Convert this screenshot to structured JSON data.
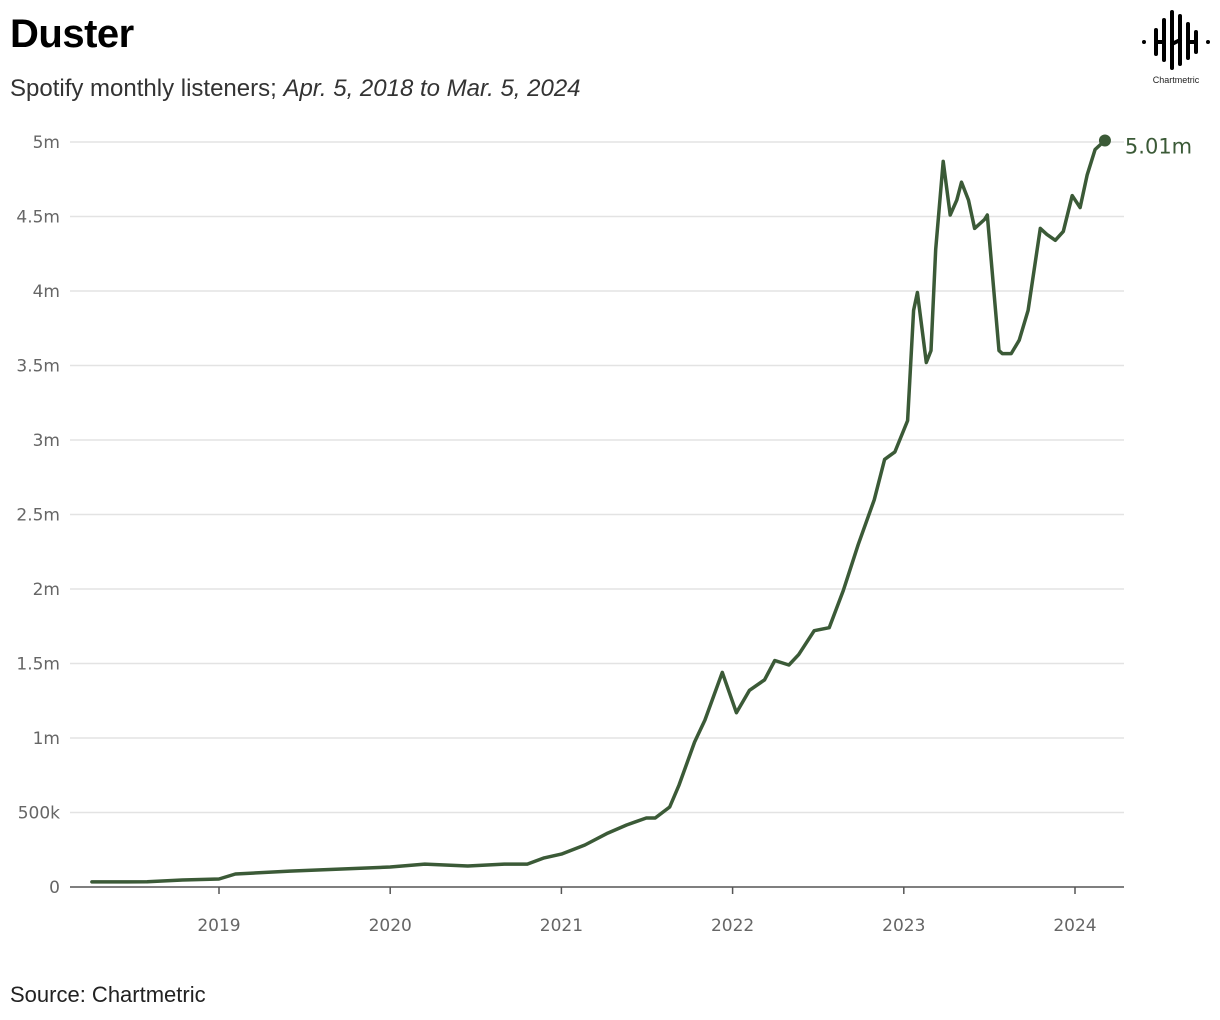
{
  "title": "Duster",
  "subtitle_plain": "Spotify monthly listeners;",
  "subtitle_italic": "Apr. 5, 2018 to Mar. 5, 2024",
  "source": "Source: Chartmetric",
  "logo_text": "Chartmetric",
  "chart_data": {
    "type": "line",
    "title": "Duster",
    "line_color": "#3b5a37",
    "grid": true,
    "ylim": [
      0,
      5000000
    ],
    "y_ticks": [
      {
        "v": 0,
        "label": "0"
      },
      {
        "v": 500000,
        "label": "500k"
      },
      {
        "v": 1000000,
        "label": "1m"
      },
      {
        "v": 1500000,
        "label": "1.5m"
      },
      {
        "v": 2000000,
        "label": "2m"
      },
      {
        "v": 2500000,
        "label": "2.5m"
      },
      {
        "v": 3000000,
        "label": "3m"
      },
      {
        "v": 3500000,
        "label": "3.5m"
      },
      {
        "v": 4000000,
        "label": "4m"
      },
      {
        "v": 4500000,
        "label": "4.5m"
      },
      {
        "v": 5000000,
        "label": "5m"
      }
    ],
    "x_ticks": [
      "2019",
      "2020",
      "2021",
      "2022",
      "2023",
      "2024"
    ],
    "xlim": [
      "2018-04-05",
      "2024-03-05"
    ],
    "end_label": "5.01m",
    "points": [
      [
        "2018-04-05",
        34000
      ],
      [
        "2018-08-01",
        35000
      ],
      [
        "2018-10-15",
        47000
      ],
      [
        "2019-01-01",
        54000
      ],
      [
        "2019-02-05",
        87000
      ],
      [
        "2019-06-01",
        107000
      ],
      [
        "2020-01-01",
        134000
      ],
      [
        "2020-03-15",
        154000
      ],
      [
        "2020-06-15",
        141000
      ],
      [
        "2020-09-01",
        154000
      ],
      [
        "2020-10-20",
        154000
      ],
      [
        "2020-11-25",
        195000
      ],
      [
        "2021-01-01",
        221000
      ],
      [
        "2021-02-20",
        282000
      ],
      [
        "2021-04-10",
        362000
      ],
      [
        "2021-05-20",
        416000
      ],
      [
        "2021-07-01",
        463000
      ],
      [
        "2021-07-20",
        463000
      ],
      [
        "2021-08-20",
        537000
      ],
      [
        "2021-09-09",
        685000
      ],
      [
        "2021-10-12",
        973000
      ],
      [
        "2021-11-03",
        1120000
      ],
      [
        "2021-12-10",
        1440000
      ],
      [
        "2022-01-09",
        1170000
      ],
      [
        "2022-02-06",
        1320000
      ],
      [
        "2022-03-10",
        1390000
      ],
      [
        "2022-04-01",
        1520000
      ],
      [
        "2022-05-01",
        1490000
      ],
      [
        "2022-05-22",
        1560000
      ],
      [
        "2022-06-24",
        1720000
      ],
      [
        "2022-07-26",
        1740000
      ],
      [
        "2022-08-25",
        1990000
      ],
      [
        "2022-09-26",
        2300000
      ],
      [
        "2022-10-30",
        2600000
      ],
      [
        "2022-11-21",
        2870000
      ],
      [
        "2022-12-13",
        2920000
      ],
      [
        "2023-01-09",
        3130000
      ],
      [
        "2023-01-22",
        3870000
      ],
      [
        "2023-01-30",
        3990000
      ],
      [
        "2023-02-18",
        3520000
      ],
      [
        "2023-02-28",
        3600000
      ],
      [
        "2023-03-10",
        4280000
      ],
      [
        "2023-03-26",
        4870000
      ],
      [
        "2023-04-10",
        4510000
      ],
      [
        "2023-04-24",
        4610000
      ],
      [
        "2023-05-04",
        4730000
      ],
      [
        "2023-05-19",
        4610000
      ],
      [
        "2023-06-01",
        4420000
      ],
      [
        "2023-06-22",
        4480000
      ],
      [
        "2023-06-28",
        4510000
      ],
      [
        "2023-07-23",
        3600000
      ],
      [
        "2023-07-30",
        3580000
      ],
      [
        "2023-08-18",
        3580000
      ],
      [
        "2023-09-04",
        3670000
      ],
      [
        "2023-09-23",
        3870000
      ],
      [
        "2023-10-19",
        4420000
      ],
      [
        "2023-11-02",
        4380000
      ],
      [
        "2023-11-20",
        4340000
      ],
      [
        "2023-12-07",
        4400000
      ],
      [
        "2023-12-26",
        4640000
      ],
      [
        "2024-01-12",
        4560000
      ],
      [
        "2024-01-27",
        4780000
      ],
      [
        "2024-02-13",
        4950000
      ],
      [
        "2024-03-05",
        5010000
      ]
    ]
  }
}
